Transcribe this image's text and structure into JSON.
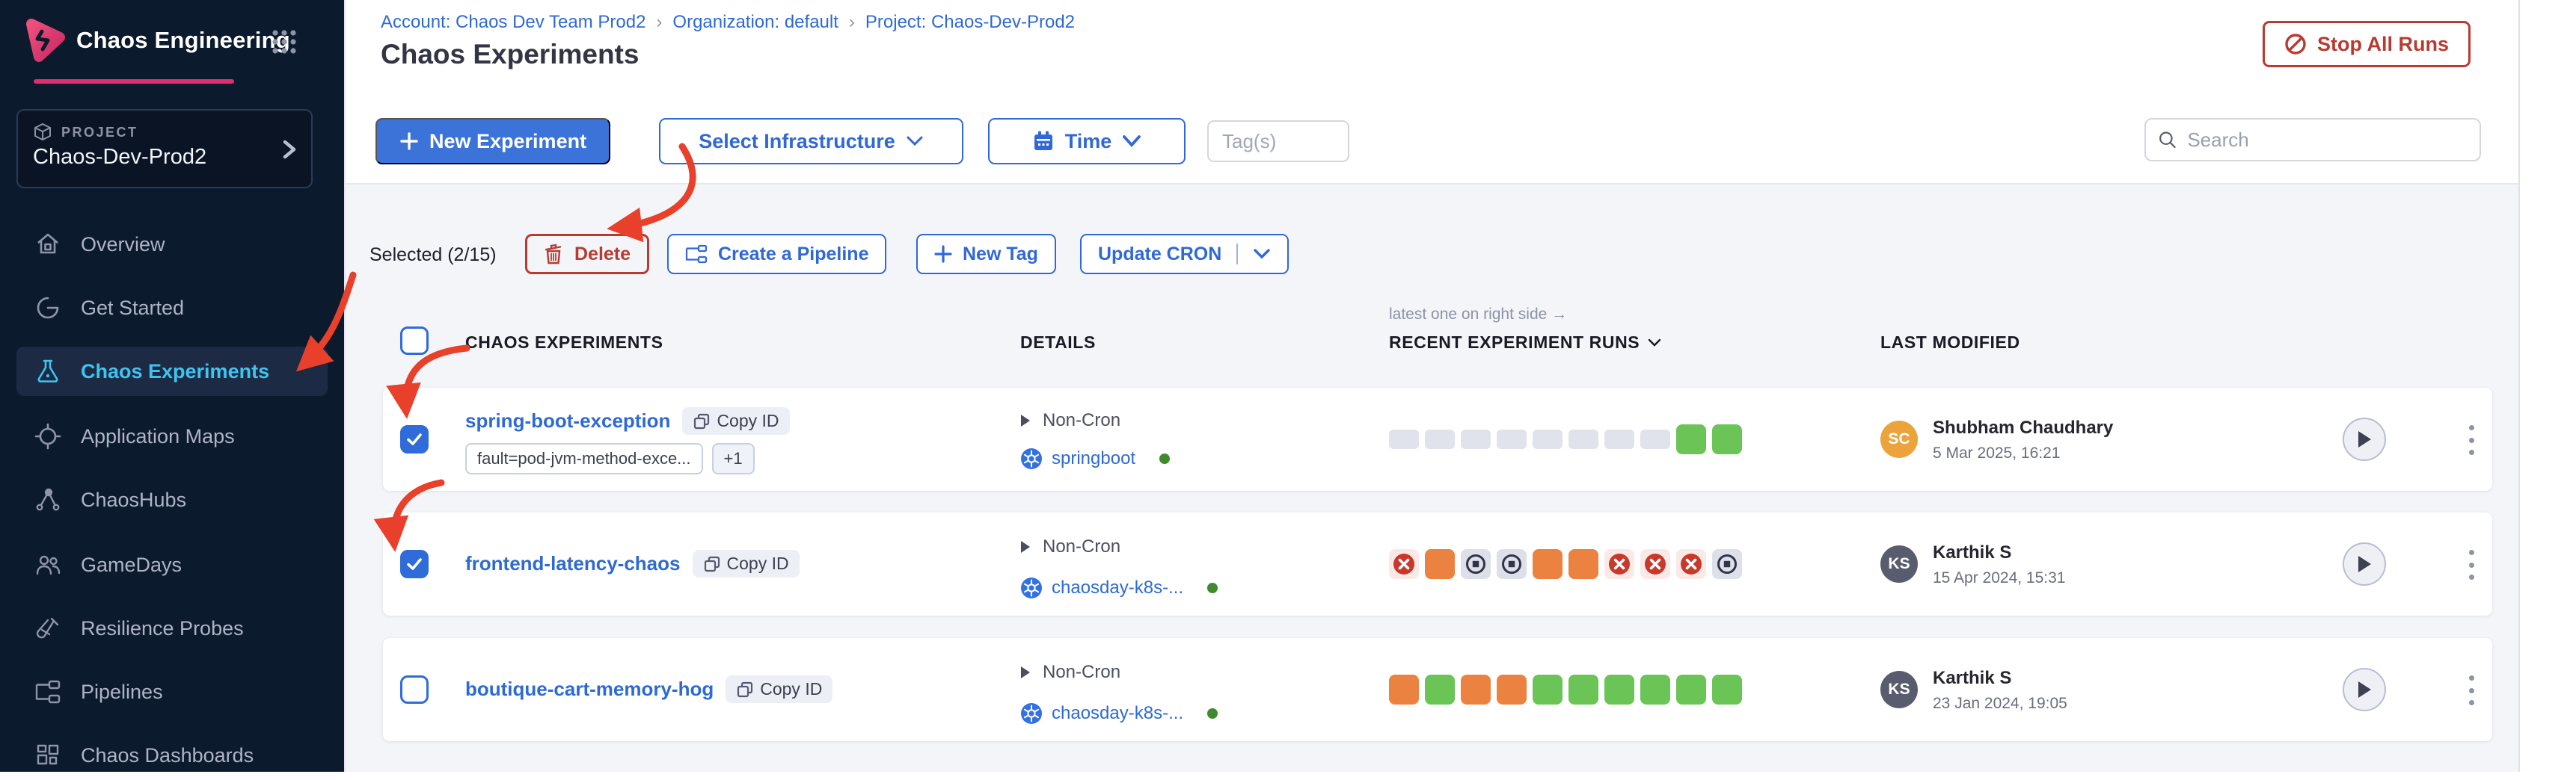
{
  "app": {
    "title": "Chaos Engineering"
  },
  "colors": {
    "primary_blue": "#3068d8",
    "solid_blue": "#3b73d9",
    "nav_active_blue": "#3fc3f0",
    "brand_magenta": "#df2f6e",
    "danger_red": "#b83b31",
    "annotation_red": "#e8402a",
    "run_green": "#6bc456",
    "run_orange": "#ec8240",
    "run_fail_red": "#c8382b",
    "sidebar_bg": "#0c1a2e",
    "content_bg": "#f3f5f9"
  },
  "sidebar": {
    "project_label": "PROJECT",
    "project_name": "Chaos-Dev-Prod2",
    "items": [
      {
        "label": "Overview"
      },
      {
        "label": "Get Started"
      },
      {
        "label": "Chaos Experiments"
      },
      {
        "label": "Application Maps"
      },
      {
        "label": "ChaosHubs"
      },
      {
        "label": "GameDays"
      },
      {
        "label": "Resilience Probes"
      },
      {
        "label": "Pipelines"
      },
      {
        "label": "Chaos Dashboards"
      }
    ]
  },
  "breadcrumb": {
    "account": "Account: Chaos Dev Team Prod2",
    "org": "Organization: default",
    "project": "Project: Chaos-Dev-Prod2",
    "separator": "›"
  },
  "page": {
    "title": "Chaos Experiments"
  },
  "actions": {
    "stop_all_runs": "Stop All Runs",
    "new_experiment": "New Experiment",
    "select_infrastructure": "Select Infrastructure",
    "time": "Time",
    "tags_placeholder": "Tag(s)",
    "search_placeholder": "Search"
  },
  "bulk": {
    "selected": "Selected (2/15)",
    "delete": "Delete",
    "create_pipeline": "Create a Pipeline",
    "new_tag": "New Tag",
    "update_cron": "Update CRON"
  },
  "table": {
    "hint": "latest one on right side →",
    "col_experiments": "CHAOS EXPERIMENTS",
    "col_details": "DETAILS",
    "col_runs": "RECENT EXPERIMENT RUNS",
    "col_modified": "LAST MODIFIED",
    "rows": [
      {
        "name": "spring-boot-exception",
        "copy": "Copy ID",
        "tag": "fault=pod-jvm-method-exce...",
        "tag_more": "+1",
        "schedule": "Non-Cron",
        "infra": "springboot",
        "runs": [
          "none",
          "none",
          "none",
          "none",
          "none",
          "none",
          "none",
          "none",
          "completed",
          "completed"
        ],
        "avatar": "SC",
        "avatar_color": "#eda33c",
        "user": "Shubham Chaudhary",
        "modified": "5 Mar 2025, 16:21"
      },
      {
        "name": "frontend-latency-chaos",
        "copy": "Copy ID",
        "schedule": "Non-Cron",
        "infra": "chaosday-k8s-...",
        "runs": [
          "failed",
          "running",
          "stopped",
          "stopped",
          "running",
          "running",
          "failed",
          "failed",
          "failed",
          "stopped"
        ],
        "avatar": "KS",
        "avatar_color": "#585c6e",
        "user": "Karthik S",
        "modified": "15 Apr 2024, 15:31"
      },
      {
        "name": "boutique-cart-memory-hog",
        "copy": "Copy ID",
        "schedule": "Non-Cron",
        "infra": "chaosday-k8s-...",
        "runs": [
          "running",
          "completed",
          "running",
          "running",
          "completed",
          "completed",
          "completed",
          "completed",
          "completed",
          "completed"
        ],
        "avatar": "KS",
        "avatar_color": "#585c6e",
        "user": "Karthik S",
        "modified": "23 Jan 2024, 19:05"
      }
    ]
  }
}
